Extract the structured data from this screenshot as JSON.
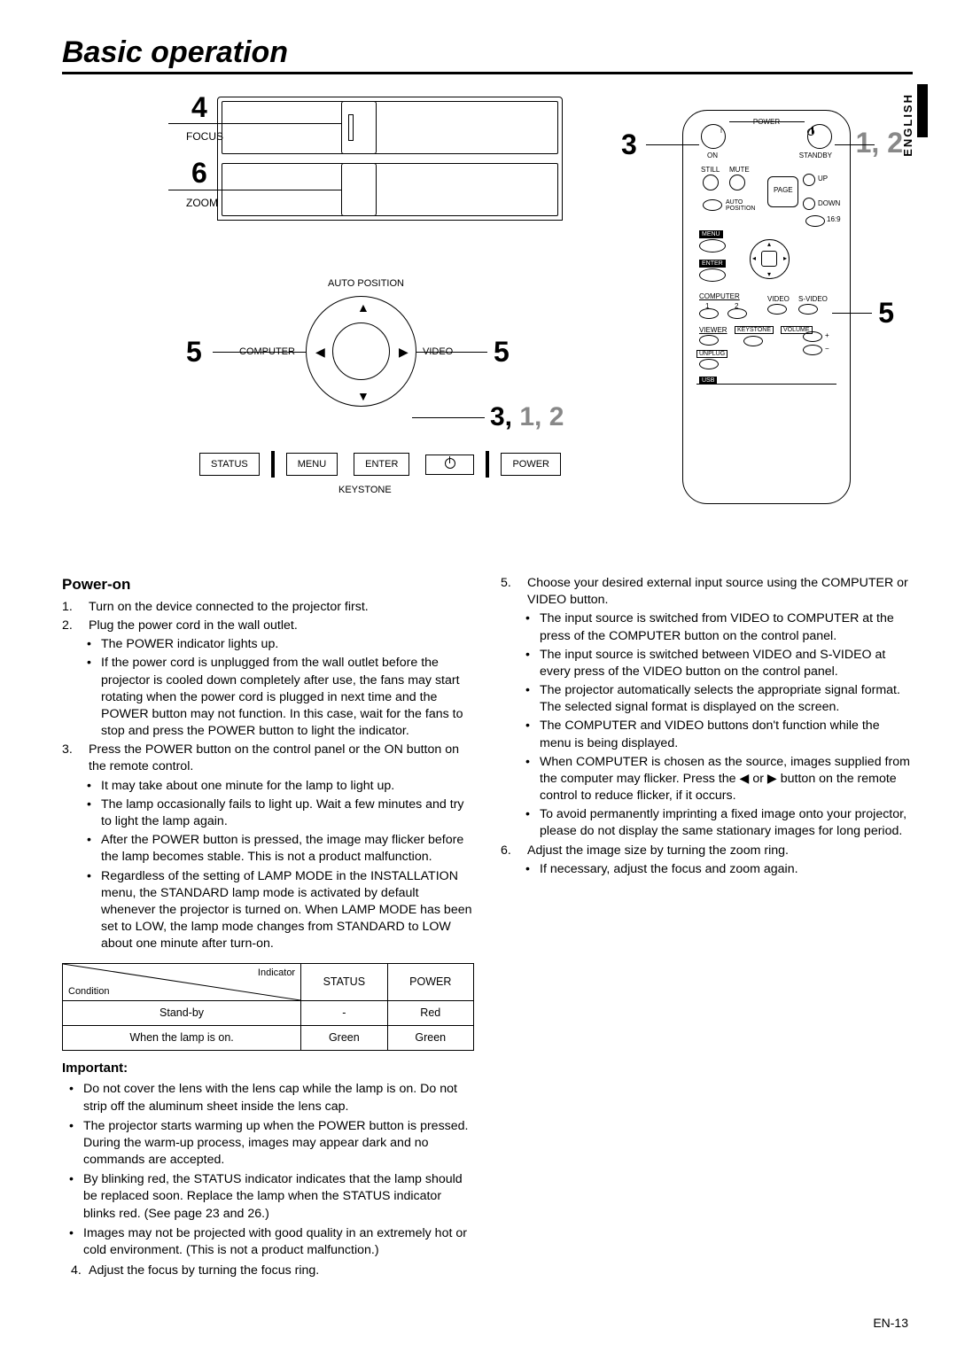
{
  "title": "Basic operation",
  "language_tab": "ENGLISH",
  "page_number": "EN-13",
  "diagram_top": {
    "num_focus": "4",
    "label_focus": "FOCUS",
    "num_zoom": "6",
    "label_zoom": "ZOOM"
  },
  "control_ring": {
    "auto_position": "AUTO POSITION",
    "computer": "COMPUTER",
    "video": "VIDEO",
    "num_left": "5",
    "num_right": "5",
    "callout_312_bold": "3,",
    "callout_312_light": " 1, 2",
    "buttons": {
      "status": "STATUS",
      "menu": "MENU",
      "enter": "ENTER",
      "power": "POWER"
    },
    "keystone": "KEYSTONE"
  },
  "remote": {
    "callout_3": "3",
    "callout_12": "1, 2",
    "callout_5": "5",
    "power": "POWER",
    "on": "ON",
    "standby": "STANDBY",
    "still": "STILL",
    "mute": "MUTE",
    "up": "UP",
    "page": "PAGE",
    "down": "DOWN",
    "auto_position": "AUTO\nPOSITION",
    "ratio": "16:9",
    "menu": "MENU",
    "enter": "ENTER",
    "computer": "COMPUTER",
    "n1": "1",
    "n2": "2",
    "video_lbl": "VIDEO",
    "svideo": "S-VIDEO",
    "viewer": "VIEWER",
    "keystone": "KEYSTONE",
    "volume": "VOLUME",
    "unplug": "UNPLUG",
    "usb": "USB"
  },
  "power_on_heading": "Power-on",
  "left_steps": [
    {
      "n": "1.",
      "text": "Turn on the device connected to the projector first."
    },
    {
      "n": "2.",
      "text": "Plug the power cord in the wall outlet.",
      "sub": [
        "The POWER indicator lights up.",
        "If the power cord is unplugged from the wall outlet before the projector is cooled down completely after use, the fans may start rotating when the power cord is plugged in next time and the POWER button may not function. In this case, wait for the fans to stop and press the POWER button to light the indicator."
      ]
    },
    {
      "n": "3.",
      "text": "Press the POWER button on the control panel or the ON button on the remote control.",
      "sub": [
        "It may take about one minute for the lamp to light up.",
        "The lamp occasionally fails to light up. Wait a few minutes and try to light the lamp again.",
        "After the POWER button is pressed, the image may flicker before the lamp becomes stable. This is not a product malfunction.",
        "Regardless of the setting of LAMP MODE in the INSTALLATION menu, the STANDARD lamp mode is activated by default whenever the projector is turned on. When LAMP MODE has been set to LOW, the lamp mode changes from STANDARD to LOW about one minute after turn-on."
      ]
    }
  ],
  "table": {
    "header_indicator": "Indicator",
    "header_condition": "Condition",
    "col_status": "STATUS",
    "col_power": "POWER",
    "rows": [
      {
        "cond": "Stand-by",
        "status": "-",
        "power": "Red"
      },
      {
        "cond": "When the lamp is on.",
        "status": "Green",
        "power": "Green"
      }
    ]
  },
  "important_heading": "Important:",
  "important_items": [
    "Do not cover the lens with the lens cap while the lamp is on. Do not strip off the aluminum sheet inside the lens cap.",
    "The projector starts warming up when the POWER button is pressed. During the warm-up process, images may appear dark and no commands are accepted.",
    "By blinking red, the STATUS indicator indicates that the lamp should be replaced soon. Replace the lamp when the STATUS indicator blinks red. (See page 23 and 26.)",
    "Images may not be projected with good quality in an extremely hot or cold environment. (This is not a product malfunction.)"
  ],
  "step4": {
    "n": "4.",
    "text": "Adjust the focus by turning the focus ring."
  },
  "right_steps": [
    {
      "n": "5.",
      "text": "Choose your desired external input source using  the COMPUTER or VIDEO button.",
      "sub": [
        "The input source is switched from VIDEO to COMPUTER at the press of the COMPUTER button on the control panel.",
        "The input source is switched between VIDEO and S-VIDEO at every press of the VIDEO button on the control panel.",
        "The projector automatically selects the appropriate signal format. The selected signal format is displayed on the screen.",
        "The COMPUTER and VIDEO buttons don't function while the menu is being displayed.",
        "When COMPUTER is chosen as the source, images supplied from the computer may flicker. Press the ◀ or ▶ button on the remote control to reduce flicker, if it occurs.",
        "To avoid permanently imprinting a fixed image onto your projector, please do not display the same stationary images for long period."
      ]
    },
    {
      "n": "6.",
      "text": "Adjust the image size by turning the zoom ring.",
      "sub": [
        "If necessary, adjust the focus and zoom again."
      ]
    }
  ]
}
